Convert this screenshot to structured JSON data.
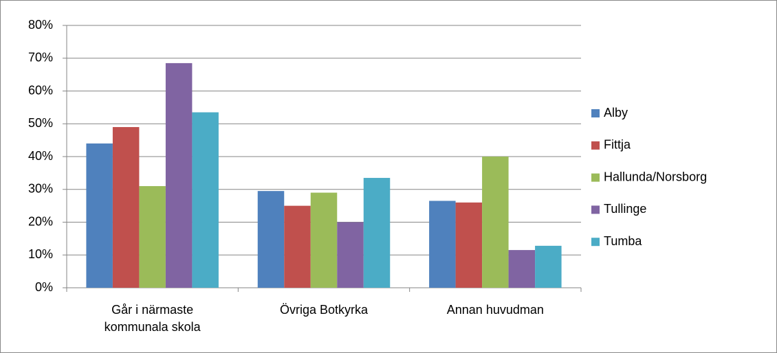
{
  "chart_data": {
    "type": "bar",
    "categories": [
      "Går i närmaste kommunala skola",
      "Övriga Botkyrka",
      "Annan huvudman"
    ],
    "series": [
      {
        "name": "Alby",
        "color": "#4f81bd",
        "values": [
          44,
          29.5,
          26.5
        ]
      },
      {
        "name": "Fittja",
        "color": "#c0504d",
        "values": [
          49,
          25,
          26
        ]
      },
      {
        "name": "Hallunda/Norsborg",
        "color": "#9bbb59",
        "values": [
          31,
          29,
          40
        ]
      },
      {
        "name": "Tullinge",
        "color": "#8064a2",
        "values": [
          68.5,
          20,
          11.5
        ]
      },
      {
        "name": "Tumba",
        "color": "#4bacc6",
        "values": [
          53.5,
          33.5,
          12.8
        ]
      }
    ],
    "ylim": [
      0,
      80
    ],
    "yticks": [
      {
        "value": 0,
        "label": "0%"
      },
      {
        "value": 10,
        "label": "10%"
      },
      {
        "value": 20,
        "label": "20%"
      },
      {
        "value": 30,
        "label": "30%"
      },
      {
        "value": 40,
        "label": "40%"
      },
      {
        "value": 50,
        "label": "50%"
      },
      {
        "value": 60,
        "label": "60%"
      },
      {
        "value": 70,
        "label": "70%"
      },
      {
        "value": 80,
        "label": "80%"
      }
    ],
    "grid": true,
    "legend": "right"
  }
}
